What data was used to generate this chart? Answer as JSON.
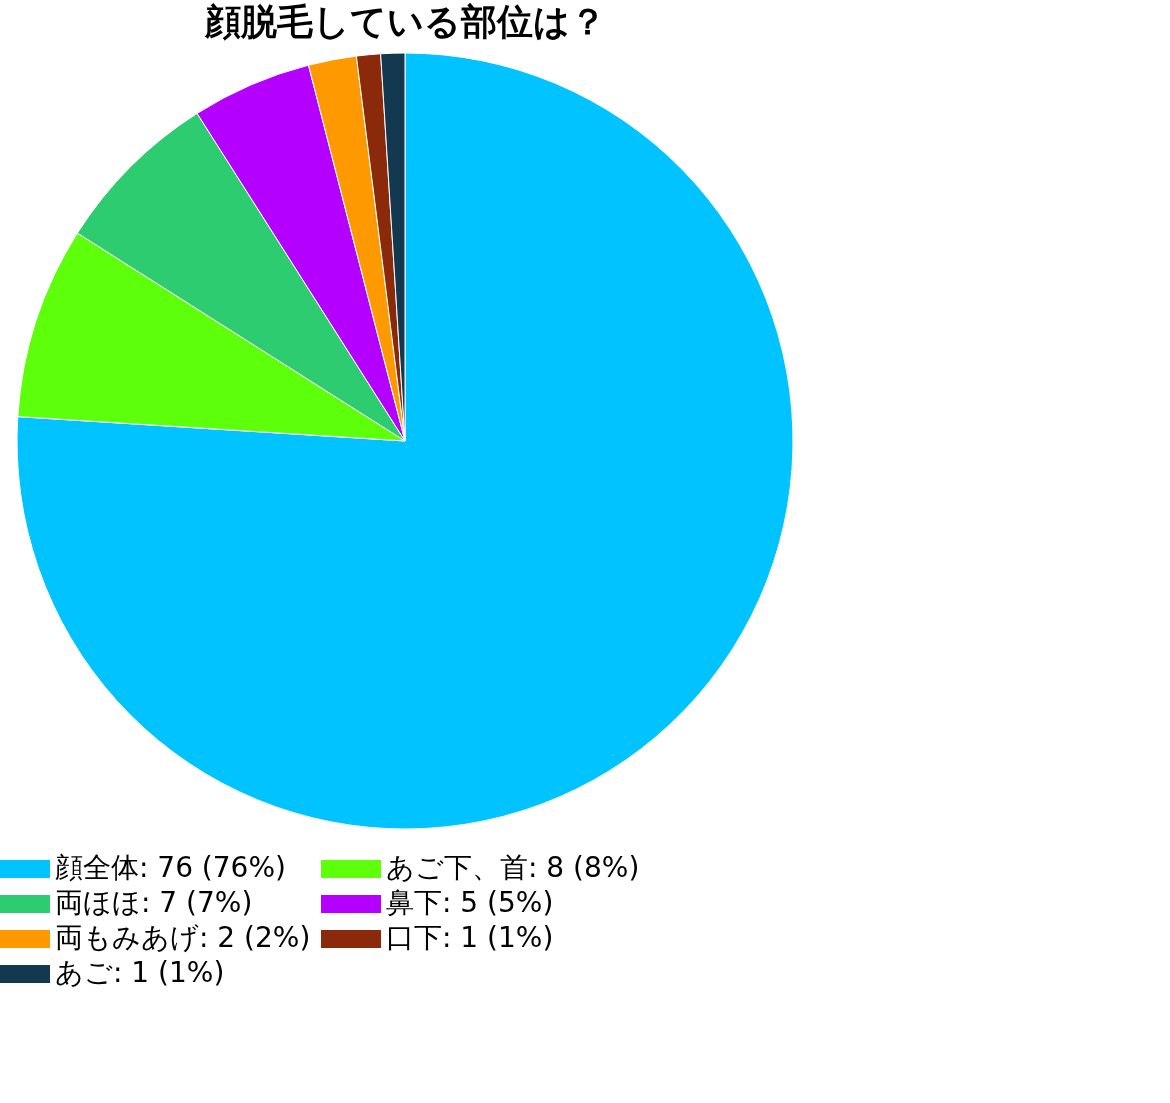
{
  "chart_data": {
    "type": "pie",
    "title": "顔脱毛している部位は？",
    "categories": [
      "顔全体",
      "あご下、首",
      "両ほほ",
      "鼻下",
      "両もみあげ",
      "口下",
      "あご"
    ],
    "values": [
      76,
      8,
      7,
      5,
      2,
      1,
      1
    ],
    "value_labels": [
      "76 (76%)",
      "8 (8%)",
      "7 (7%)",
      "5 (5%)",
      "2 (2%)",
      "1 (1%)",
      "1 (1%)"
    ],
    "colors": [
      "#00c3ff",
      "#5eff0a",
      "#2ecc71",
      "#b300ff",
      "#ff9900",
      "#8a2a0a",
      "#133950"
    ],
    "legend": "bottom"
  }
}
